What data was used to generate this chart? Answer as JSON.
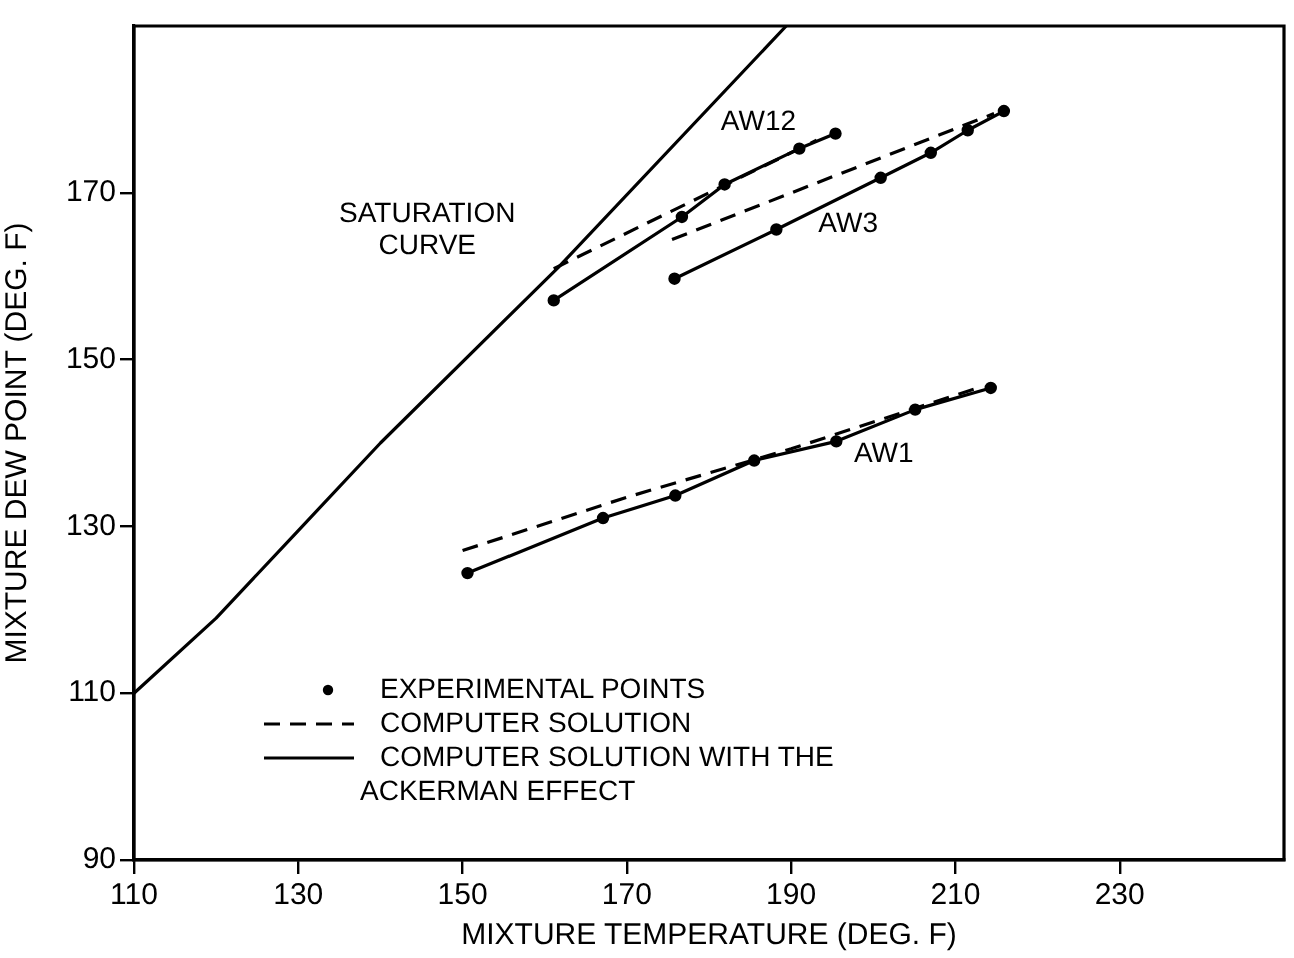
{
  "chart_data": {
    "type": "line",
    "xlabel": "MIXTURE TEMPERATURE (DEG. F)",
    "ylabel": "MIXTURE DEW POINT (DEG. F)",
    "xlim": [
      110,
      250
    ],
    "xticks": [
      110,
      130,
      150,
      170,
      190,
      210,
      230
    ],
    "ylim": [
      90,
      190
    ],
    "yticks": [
      90,
      110,
      130,
      150,
      170
    ],
    "grid": false,
    "legend": "bottom left",
    "series": [
      {
        "color": "#000000",
        "line_style": "solid",
        "marker": "none",
        "x": [
          110,
          120,
          130,
          140,
          161.6,
          189.4
        ],
        "values": [
          110,
          119,
          129.5,
          140,
          161,
          190
        ]
      },
      {
        "name": "COMPUTER SOLUTION",
        "color": "#000000",
        "line_style": "dashed",
        "marker": "none",
        "x": [
          161.1,
          193.1,
          null,
          175.5,
          214.7,
          null,
          150,
          170,
          190,
          213
        ],
        "values": [
          160.9,
          176.3,
          null,
          164.4,
          179.5,
          null,
          127.1,
          133.5,
          139.3,
          146.7
        ]
      },
      {
        "name": "COMPUTER SOLUTION WITH THE ACKERMAN EFFECT",
        "color": "#000000",
        "line_style": "solid",
        "marker": "none",
        "x": [
          161.1,
          176.7,
          181.9,
          191,
          195.4,
          null,
          175.8,
          188.2,
          200.9,
          207,
          211.5,
          215.9,
          null,
          150.6,
          167.1,
          175.9,
          185.5,
          195.5,
          205.1,
          214.3
        ],
        "values": [
          157.1,
          167.1,
          171,
          175.3,
          177.1,
          null,
          159.7,
          165.6,
          171.8,
          174.8,
          177.5,
          179.8,
          null,
          124.4,
          131,
          133.7,
          137.9,
          140.2,
          144,
          146.6
        ]
      },
      {
        "type": "scatter",
        "name": "EXPERIMENTAL POINTS",
        "color": "#000000",
        "marker": "circle",
        "x": [
          161.1,
          176.7,
          181.9,
          191,
          195.4,
          175.8,
          188.2,
          200.9,
          207,
          211.5,
          215.9,
          150.6,
          167.1,
          175.9,
          185.5,
          195.5,
          205.1,
          214.3
        ],
        "values": [
          157.1,
          167.1,
          171,
          175.3,
          177.1,
          159.7,
          165.6,
          171.8,
          174.8,
          177.5,
          179.8,
          124.4,
          131,
          133.7,
          137.9,
          140.2,
          144,
          146.6
        ]
      }
    ],
    "annotations": [
      "SATURATION CURVE",
      "AW12",
      "AW3",
      "AW1"
    ]
  }
}
